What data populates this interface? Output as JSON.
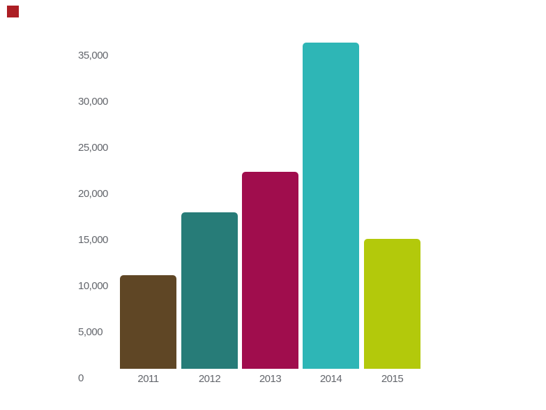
{
  "chart_data": {
    "type": "bar",
    "title": "",
    "xlabel": "",
    "ylabel": "",
    "categories": [
      "2011",
      "2012",
      "2013",
      "2014",
      "2015"
    ],
    "values": [
      10500,
      17500,
      22000,
      36500,
      14500
    ],
    "bar_colors": [
      "#5F4625",
      "#277C78",
      "#A00D4D",
      "#2EB6B6",
      "#B3C90B"
    ],
    "y_tick_labels": [
      "35,000",
      "30,000",
      "25,000",
      "20,000",
      "15,000",
      "10,000",
      "5,000",
      "0"
    ],
    "y_tick_values": [
      35000,
      30000,
      25000,
      20000,
      15000,
      10000,
      5000,
      0
    ],
    "ylim": [
      0,
      37500
    ],
    "gridlines": false,
    "legend": false,
    "background": "#FFFFFF",
    "axis_label_color": "#63666C",
    "bar_corner_radius_px": 5
  },
  "decorations": {
    "top_left_marker_color": "#AC1E24"
  }
}
